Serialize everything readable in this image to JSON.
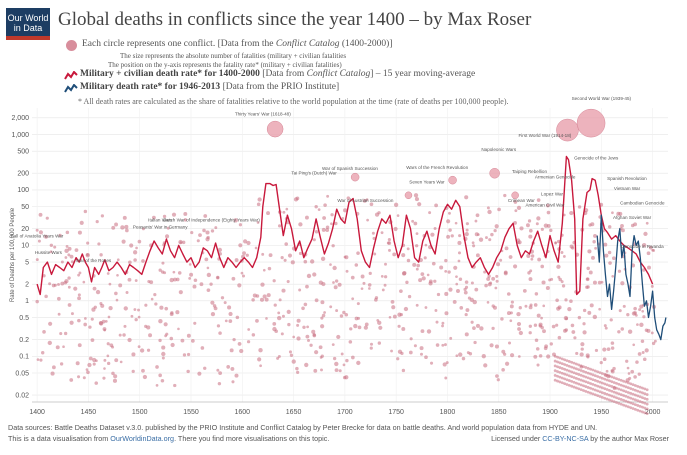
{
  "brand": {
    "line1": "Our World",
    "line2": "in Data"
  },
  "title": "Global deaths in conflicts since the year 1400 – by Max Roser",
  "legend": {
    "circle_main": "Each circle represents one conflict. [Data from the ",
    "circle_source": "Conflict Catalog",
    "circle_tail": " (1400-2000)]",
    "size_line": "The size represents the absolute number of fatalities (military + civilian fatalities",
    "position_line": "The position on the y-axis represents the fatality rate* (military + civilian fatalities)",
    "red_main": "Military + civilian death rate* for 1400-2000",
    "red_source": " [Data from ",
    "red_source_name": "Conflict Catalog",
    "red_tail": "] – 15 year moving-average",
    "blue_main": "Military death rate* for 1946-2013",
    "blue_tail": " [Data from the PRIO Institute]",
    "note": "* All death rates are calculated as the share of fatalities relative to the world population at the time (rate of deaths per 100,000 people)."
  },
  "colors": {
    "red": "#c8193c",
    "blue": "#1f4e79",
    "dot": "#c96e80",
    "logo": "#1d3d63"
  },
  "footer": {
    "line1": "Data sources: Battle Deaths Dataset v.3.0. published by the PRIO Institute and Conflict Catalog by Peter Brecke for data on battle deaths. And world population data from HYDE and UN.",
    "line2a": "This is a data visualisation from ",
    "line2_link": "OurWorldinData.org",
    "line2b": ". There you find more visualisations on this topic.",
    "license_a": "Licensed under ",
    "license_link": "CC-BY-NC-SA",
    "license_b": " by the author Max Roser"
  },
  "chart_data": {
    "type": "scatter",
    "title": "Global deaths in conflicts since the year 1400",
    "ylabel": "Rate of Deaths per 100,000 People",
    "xlabel": "",
    "xlim": [
      1395,
      2015
    ],
    "ylim": [
      0.015,
      3000
    ],
    "yscale": "log",
    "x_ticks": [
      1400,
      1450,
      1500,
      1550,
      1600,
      1650,
      1700,
      1750,
      1800,
      1850,
      1900,
      1950,
      2000
    ],
    "y_ticks": [
      {
        "v": 2000,
        "label": "2,000"
      },
      {
        "v": 1000,
        "label": "1,000"
      },
      {
        "v": 500,
        "label": "500"
      },
      {
        "v": 200,
        "label": "200"
      },
      {
        "v": 100,
        "label": "100"
      },
      {
        "v": 50,
        "label": "50"
      },
      {
        "v": 20,
        "label": "20"
      },
      {
        "v": 10,
        "label": "10"
      },
      {
        "v": 5,
        "label": "5"
      },
      {
        "v": 2,
        "label": "2"
      },
      {
        "v": 1,
        "label": "1"
      },
      {
        "v": 0.5,
        "label": "0.5"
      },
      {
        "v": 0.2,
        "label": "0.2"
      },
      {
        "v": 0.1,
        "label": "0.1"
      },
      {
        "v": 0.05,
        "label": "0.05"
      },
      {
        "v": 0.02,
        "label": "0.02"
      }
    ],
    "series": [
      {
        "name": "Military + civilian death rate for 1400-2000 (15 year moving-average)",
        "color": "#c8193c",
        "points": [
          [
            1400,
            2
          ],
          [
            1403,
            1.3
          ],
          [
            1406,
            4
          ],
          [
            1410,
            5
          ],
          [
            1414,
            3
          ],
          [
            1418,
            4.5
          ],
          [
            1422,
            4
          ],
          [
            1426,
            3.5
          ],
          [
            1430,
            5
          ],
          [
            1434,
            4
          ],
          [
            1438,
            6
          ],
          [
            1441,
            5
          ],
          [
            1444,
            7
          ],
          [
            1447,
            5
          ],
          [
            1450,
            4
          ],
          [
            1453,
            2.2
          ],
          [
            1456,
            4
          ],
          [
            1460,
            3
          ],
          [
            1463,
            4
          ],
          [
            1466,
            5.5
          ],
          [
            1470,
            3.5
          ],
          [
            1474,
            4
          ],
          [
            1478,
            5
          ],
          [
            1482,
            4
          ],
          [
            1486,
            3
          ],
          [
            1490,
            4.5
          ],
          [
            1494,
            4
          ],
          [
            1498,
            3.5
          ],
          [
            1502,
            3
          ],
          [
            1506,
            5
          ],
          [
            1510,
            8
          ],
          [
            1514,
            12
          ],
          [
            1518,
            9
          ],
          [
            1522,
            7
          ],
          [
            1526,
            13
          ],
          [
            1530,
            8
          ],
          [
            1534,
            6
          ],
          [
            1538,
            10
          ],
          [
            1542,
            7
          ],
          [
            1546,
            5
          ],
          [
            1550,
            6
          ],
          [
            1554,
            4
          ],
          [
            1558,
            5
          ],
          [
            1562,
            9
          ],
          [
            1566,
            8
          ],
          [
            1570,
            6
          ],
          [
            1574,
            11
          ],
          [
            1578,
            6
          ],
          [
            1582,
            4
          ],
          [
            1586,
            6
          ],
          [
            1590,
            5
          ],
          [
            1594,
            4
          ],
          [
            1598,
            5
          ],
          [
            1602,
            6
          ],
          [
            1606,
            5
          ],
          [
            1610,
            4
          ],
          [
            1614,
            6
          ],
          [
            1618,
            14
          ],
          [
            1620,
            50
          ],
          [
            1623,
            130
          ],
          [
            1627,
            130
          ],
          [
            1630,
            120
          ],
          [
            1633,
            125
          ],
          [
            1636,
            50
          ],
          [
            1640,
            15
          ],
          [
            1644,
            35
          ],
          [
            1648,
            20
          ],
          [
            1652,
            8
          ],
          [
            1656,
            12
          ],
          [
            1660,
            6
          ],
          [
            1664,
            9
          ],
          [
            1668,
            13
          ],
          [
            1672,
            30
          ],
          [
            1676,
            14
          ],
          [
            1680,
            7
          ],
          [
            1684,
            11
          ],
          [
            1688,
            20
          ],
          [
            1692,
            45
          ],
          [
            1696,
            30
          ],
          [
            1700,
            25
          ],
          [
            1704,
            60
          ],
          [
            1708,
            70
          ],
          [
            1712,
            30
          ],
          [
            1716,
            8
          ],
          [
            1720,
            5
          ],
          [
            1724,
            4
          ],
          [
            1728,
            9
          ],
          [
            1732,
            18
          ],
          [
            1736,
            30
          ],
          [
            1740,
            25
          ],
          [
            1744,
            35
          ],
          [
            1748,
            12
          ],
          [
            1752,
            6
          ],
          [
            1756,
            10
          ],
          [
            1760,
            35
          ],
          [
            1764,
            20
          ],
          [
            1768,
            6
          ],
          [
            1772,
            5
          ],
          [
            1776,
            12
          ],
          [
            1780,
            18
          ],
          [
            1784,
            10
          ],
          [
            1788,
            7
          ],
          [
            1792,
            20
          ],
          [
            1796,
            40
          ],
          [
            1800,
            55
          ],
          [
            1804,
            45
          ],
          [
            1808,
            65
          ],
          [
            1812,
            50
          ],
          [
            1816,
            15
          ],
          [
            1820,
            6
          ],
          [
            1824,
            4
          ],
          [
            1828,
            5
          ],
          [
            1832,
            6
          ],
          [
            1836,
            4
          ],
          [
            1840,
            3
          ],
          [
            1844,
            4
          ],
          [
            1848,
            6
          ],
          [
            1852,
            8
          ],
          [
            1856,
            14
          ],
          [
            1860,
            20
          ],
          [
            1864,
            25
          ],
          [
            1868,
            10
          ],
          [
            1872,
            6
          ],
          [
            1876,
            8
          ],
          [
            1880,
            7
          ],
          [
            1884,
            12
          ],
          [
            1888,
            18
          ],
          [
            1892,
            10
          ],
          [
            1896,
            6
          ],
          [
            1900,
            15
          ],
          [
            1904,
            8
          ],
          [
            1908,
            5
          ],
          [
            1912,
            25
          ],
          [
            1916,
            400
          ],
          [
            1918,
            350
          ],
          [
            1921,
            150
          ],
          [
            1924,
            30
          ],
          [
            1926,
            1.3
          ],
          [
            1929,
            1.5
          ],
          [
            1932,
            30
          ],
          [
            1936,
            90
          ],
          [
            1939,
            100
          ],
          [
            1941,
            160
          ],
          [
            1944,
            150
          ],
          [
            1947,
            80
          ],
          [
            1950,
            35
          ],
          [
            1953,
            20
          ],
          [
            1956,
            17
          ],
          [
            1960,
            13
          ],
          [
            1964,
            15
          ],
          [
            1968,
            12
          ],
          [
            1972,
            10
          ],
          [
            1976,
            9
          ],
          [
            1980,
            8
          ],
          [
            1984,
            7
          ],
          [
            1988,
            5
          ],
          [
            1992,
            4
          ],
          [
            1996,
            3
          ],
          [
            2000,
            2
          ]
        ]
      },
      {
        "name": "Military death rate for 1946-2013",
        "color": "#1f4e79",
        "points": [
          [
            1946,
            15
          ],
          [
            1948,
            5
          ],
          [
            1950,
            35
          ],
          [
            1952,
            8
          ],
          [
            1954,
            3
          ],
          [
            1956,
            1.2
          ],
          [
            1958,
            2
          ],
          [
            1960,
            0.7
          ],
          [
            1962,
            1.5
          ],
          [
            1964,
            4
          ],
          [
            1966,
            12
          ],
          [
            1968,
            20
          ],
          [
            1970,
            6
          ],
          [
            1972,
            10
          ],
          [
            1974,
            3
          ],
          [
            1976,
            2
          ],
          [
            1978,
            1.2
          ],
          [
            1980,
            8
          ],
          [
            1982,
            15
          ],
          [
            1984,
            10
          ],
          [
            1986,
            12
          ],
          [
            1988,
            6
          ],
          [
            1990,
            2
          ],
          [
            1992,
            0.8
          ],
          [
            1994,
            1
          ],
          [
            1996,
            0.5
          ],
          [
            1998,
            0.8
          ],
          [
            2000,
            1.5
          ],
          [
            2002,
            0.5
          ],
          [
            2004,
            0.3
          ],
          [
            2006,
            0.25
          ],
          [
            2008,
            0.2
          ],
          [
            2010,
            0.35
          ],
          [
            2012,
            0.4
          ],
          [
            2013,
            0.5
          ]
        ]
      }
    ],
    "annotations": [
      {
        "year": 1400,
        "rate": 14,
        "text": "Fall of Anatolia Years War"
      },
      {
        "year": 1411,
        "rate": 7,
        "text": "Hussite Wars"
      },
      {
        "year": 1455,
        "rate": 5,
        "text": "War of the Roses"
      },
      {
        "year": 1520,
        "rate": 27,
        "text": "Italian Wars"
      },
      {
        "year": 1520,
        "rate": 20,
        "text": "Peasants' War in Germany"
      },
      {
        "year": 1570,
        "rate": 27,
        "text": "Dutch War of Independence (Eighty Years War)"
      },
      {
        "year": 1620,
        "rate": 2200,
        "text": "Thirty Years' War (1618-48)"
      },
      {
        "year": 1670,
        "rate": 190,
        "text": "Tai Ping's (Dutch) War"
      },
      {
        "year": 1705,
        "rate": 230,
        "text": "War of Spanish Succession"
      },
      {
        "year": 1720,
        "rate": 60,
        "text": "War of Austrian Succession"
      },
      {
        "year": 1790,
        "rate": 240,
        "text": "Wars of the French Revolution"
      },
      {
        "year": 1780,
        "rate": 130,
        "text": "Seven Years War"
      },
      {
        "year": 1850,
        "rate": 500,
        "text": "Napoleonic Wars"
      },
      {
        "year": 1880,
        "rate": 200,
        "text": "Taiping Rebellion"
      },
      {
        "year": 1872,
        "rate": 60,
        "text": "Crimean War"
      },
      {
        "year": 1902,
        "rate": 80,
        "text": "Lopez War"
      },
      {
        "year": 1895,
        "rate": 50,
        "text": "American Civil War"
      },
      {
        "year": 1895,
        "rate": 900,
        "text": "First World War (1914-18)"
      },
      {
        "year": 1950,
        "rate": 4200,
        "text": "Second World War (1939-45)"
      },
      {
        "year": 1905,
        "rate": 160,
        "text": "Armenian Genocide"
      },
      {
        "year": 1945,
        "rate": 350,
        "text": "Genocide of the Jews"
      },
      {
        "year": 1975,
        "rate": 150,
        "text": "Spanish Revolution"
      },
      {
        "year": 1975,
        "rate": 100,
        "text": "Vietnam War"
      },
      {
        "year": 1990,
        "rate": 55,
        "text": "Cambodian Genocide"
      },
      {
        "year": 1980,
        "rate": 30,
        "text": "Afghan Soviet War"
      },
      {
        "year": 1990,
        "rate": 9,
        "text": "Genocide in Rwanda"
      }
    ],
    "conflict_bubbles": [
      {
        "year": 1632,
        "rate": 1250,
        "deaths_scale": 8
      },
      {
        "year": 1846,
        "rate": 200,
        "deaths_scale": 5
      },
      {
        "year": 1917,
        "rate": 1200,
        "deaths_scale": 11
      },
      {
        "year": 1940,
        "rate": 1600,
        "deaths_scale": 14
      },
      {
        "year": 1710,
        "rate": 170,
        "deaths_scale": 4
      },
      {
        "year": 1805,
        "rate": 150,
        "deaths_scale": 4
      },
      {
        "year": 1762,
        "rate": 80,
        "deaths_scale": 3.5
      },
      {
        "year": 1866,
        "rate": 80,
        "deaths_scale": 3.5
      }
    ]
  }
}
